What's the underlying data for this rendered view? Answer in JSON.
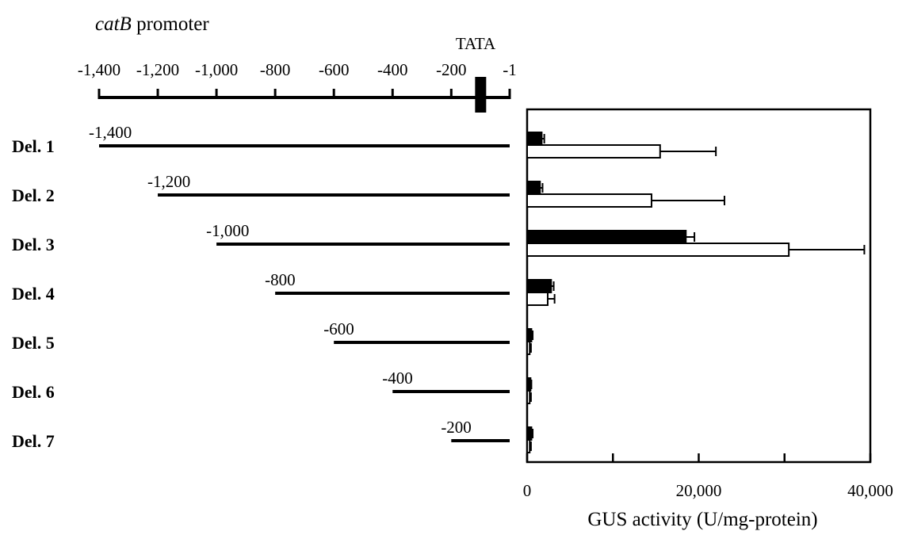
{
  "promoter": {
    "name_italic": "catB",
    "name_rest": " promoter",
    "tata_label": "TATA",
    "scale_ticks": [
      "-1,400",
      "-1,200",
      "-1,000",
      "-800",
      "-600",
      "-400",
      "-200",
      "-1"
    ]
  },
  "deletions": [
    {
      "label": "Del. 1",
      "start_label": "-1,400",
      "start": -1400
    },
    {
      "label": "Del. 2",
      "start_label": "-1,200",
      "start": -1200
    },
    {
      "label": "Del. 3",
      "start_label": "-1,000",
      "start": -1000
    },
    {
      "label": "Del. 4",
      "start_label": "-800",
      "start": -800
    },
    {
      "label": "Del. 5",
      "start_label": "-600",
      "start": -600
    },
    {
      "label": "Del. 6",
      "start_label": "-400",
      "start": -400
    },
    {
      "label": "Del. 7",
      "start_label": "-200",
      "start": -200
    }
  ],
  "chart_data": {
    "type": "bar",
    "orientation": "horizontal",
    "categories": [
      "Del. 1",
      "Del. 2",
      "Del. 3",
      "Del. 4",
      "Del. 5",
      "Del. 6",
      "Del. 7"
    ],
    "series": [
      {
        "color": "#000000",
        "values": [
          1700,
          1500,
          18500,
          2800,
          500,
          400,
          500
        ],
        "errors": [
          300,
          300,
          1000,
          300,
          150,
          100,
          150
        ]
      },
      {
        "color": "#ffffff",
        "values": [
          15500,
          14500,
          30500,
          2400,
          300,
          300,
          300
        ],
        "errors": [
          6500,
          8500,
          8800,
          800,
          150,
          150,
          150
        ]
      }
    ],
    "xlabel": "GUS activity (U/mg-protein)",
    "xlim": [
      0,
      40000
    ],
    "xticks": [
      0,
      10000,
      20000,
      30000,
      40000
    ],
    "xtick_labels": [
      "0",
      "",
      "20,000",
      "",
      "40,000"
    ],
    "grid": false,
    "legend": "none"
  }
}
